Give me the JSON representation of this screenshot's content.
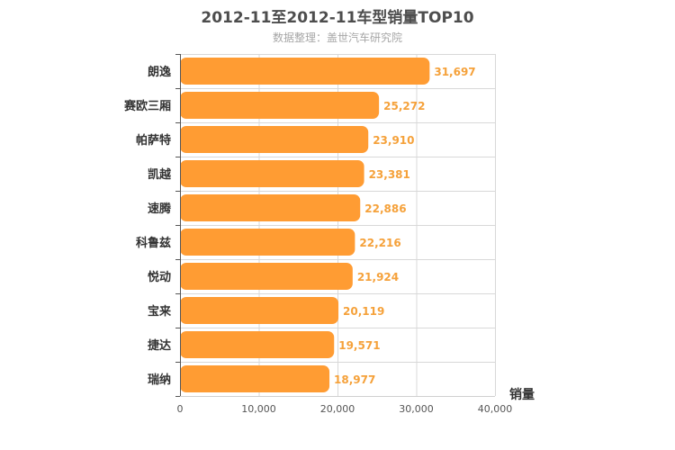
{
  "chart_data": {
    "type": "bar",
    "orientation": "horizontal",
    "title": "2012-11至2012-11车型销量TOP10",
    "subtitle": "数据整理：盖世汽车研究院",
    "xlabel": "销量",
    "ylabel": "",
    "xlim": [
      0,
      40000
    ],
    "xticks": [
      0,
      10000,
      20000,
      30000,
      40000
    ],
    "xtick_labels": [
      "0",
      "10,000",
      "20,000",
      "30,000",
      "40,000"
    ],
    "grid": true,
    "categories": [
      "朗逸",
      "赛欧三厢",
      "帕萨特",
      "凯越",
      "速腾",
      "科鲁兹",
      "悦动",
      "宝来",
      "捷达",
      "瑞纳"
    ],
    "values": [
      31697,
      25272,
      23910,
      23381,
      22886,
      22216,
      21924,
      20119,
      19571,
      18977
    ],
    "value_labels": [
      "31,697",
      "25,272",
      "23,910",
      "23,381",
      "22,886",
      "22,216",
      "21,924",
      "20,119",
      "19,571",
      "18,977"
    ],
    "bar_color": "#ff9c33",
    "label_color": "#f5a13a"
  }
}
